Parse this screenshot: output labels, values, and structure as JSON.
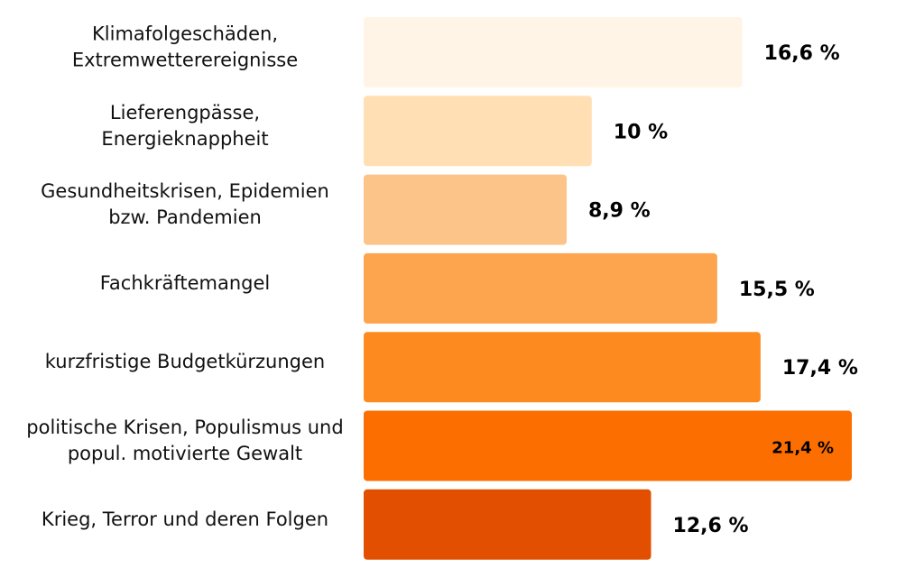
{
  "chart_data": {
    "type": "bar",
    "orientation": "horizontal",
    "title": "",
    "xlabel": "",
    "ylabel": "",
    "xlim": [
      0,
      22
    ],
    "grid": false,
    "legend": "none",
    "categories": [
      [
        "Klimafolgeschäden,",
        "Extremwetterereignisse"
      ],
      [
        "Lieferengpässe,",
        "Energieknappheit"
      ],
      [
        "Gesundheitskrisen, Epidemien",
        "bzw. Pandemien"
      ],
      [
        "Fachkräftemangel"
      ],
      [
        "kurzfristige Budgetkürzungen"
      ],
      [
        "politische Krisen, Populismus und",
        "popul. motivierte Gewalt"
      ],
      [
        "Krieg, Terror und deren Folgen"
      ]
    ],
    "values": [
      16.6,
      10,
      8.9,
      15.5,
      17.4,
      21.4,
      12.6
    ],
    "value_labels": [
      "16,6 %",
      "10 %",
      "8,9 %",
      "15,5 %",
      "17,4 %",
      "21,4 %",
      "12,6 %"
    ],
    "colors": [
      "#fff4e6",
      "#ffdfb3",
      "#fdc48a",
      "#fda44f",
      "#fd8a1e",
      "#fd6e00",
      "#e34f00"
    ]
  }
}
